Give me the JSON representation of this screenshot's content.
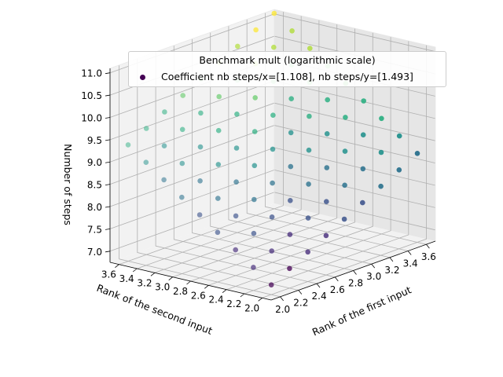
{
  "chart_data": {
    "type": "scatter3d",
    "legend": {
      "title": "Benchmark mult (logarithmic scale)",
      "entry": "Coefficient nb steps/x=[1.108], nb steps/y=[1.493]"
    },
    "xlabel": "Rank of the first input",
    "ylabel": "Rank of the second input",
    "zlabel": "Number of steps",
    "x_ticks": [
      "2.0",
      "2.2",
      "2.4",
      "2.6",
      "2.8",
      "3.0",
      "3.2",
      "3.4",
      "3.6"
    ],
    "y_ticks": [
      "2.0",
      "2.2",
      "2.4",
      "2.6",
      "2.8",
      "3.0",
      "3.2",
      "3.4",
      "3.6"
    ],
    "z_ticks": [
      "7.0",
      "7.5",
      "8.0",
      "8.5",
      "9.0",
      "9.5",
      "10.0",
      "10.5",
      "11.0"
    ],
    "xlim": [
      1.9,
      3.7
    ],
    "ylim": [
      1.9,
      3.7
    ],
    "zlim": [
      6.75,
      11.1
    ],
    "x": [
      2.0,
      2.2,
      2.4,
      2.6,
      2.8,
      3.0,
      3.2,
      3.4,
      3.6
    ],
    "y": [
      2.0,
      2.2,
      2.4,
      2.6,
      2.8,
      3.0,
      3.2,
      3.4,
      3.6
    ],
    "coef_x": 1.108,
    "coef_y": 1.493,
    "z_at_origin": 6.97,
    "colormap": "viridis",
    "colors": [
      "#440154",
      "#472d7b",
      "#3b528b",
      "#2c728e",
      "#21918c",
      "#28ae80",
      "#5ec962",
      "#addc30",
      "#fde725"
    ]
  }
}
